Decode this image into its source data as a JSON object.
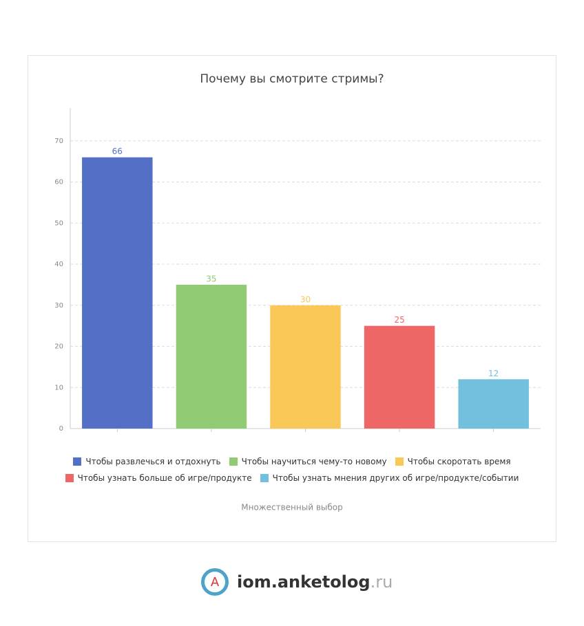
{
  "chart_data": {
    "type": "bar",
    "title": "Почему вы смотрите стримы?",
    "categories": [
      "Чтобы развлечься и отдохнуть",
      "Чтобы научиться чему-то новому",
      "Чтобы скоротать время",
      "Чтобы узнать больше об игре/продукте",
      "Чтобы узнать мнения других об игре/продукте/событии"
    ],
    "values": [
      66,
      35,
      30,
      25,
      12
    ],
    "colors": [
      "#5470c6",
      "#91cc75",
      "#fac858",
      "#ee6666",
      "#73c0de"
    ],
    "ylim": [
      0,
      78
    ],
    "yticks": [
      0,
      10,
      20,
      30,
      40,
      50,
      60,
      70
    ],
    "grid": true,
    "footnote": "Множественный выбор"
  },
  "logo": {
    "icon": "A",
    "main": "iom.anketolog",
    "suffix": ".ru"
  }
}
